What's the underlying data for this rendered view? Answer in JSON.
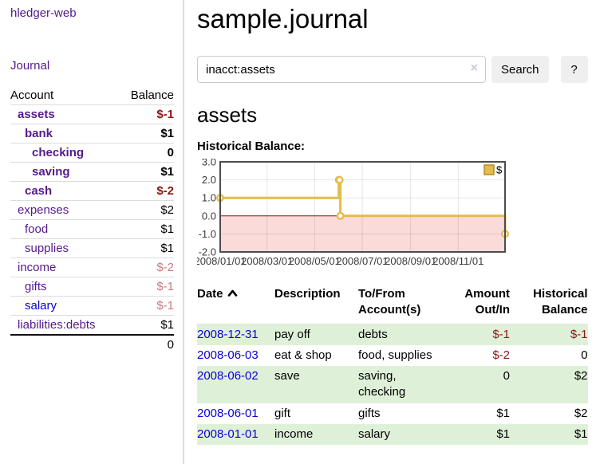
{
  "app": {
    "title": "hledger-web"
  },
  "sidebar": {
    "journal_link": "Journal",
    "accounts_header": {
      "account": "Account",
      "balance": "Balance"
    },
    "accounts": [
      {
        "name": "assets",
        "balance": "$-1",
        "level": 1,
        "bold": true,
        "link": "purple",
        "neg": "strong"
      },
      {
        "name": "bank",
        "balance": "$1",
        "level": 2,
        "bold": true,
        "link": "purple"
      },
      {
        "name": "checking",
        "balance": "0",
        "level": 3,
        "bold": true,
        "link": "purple"
      },
      {
        "name": "saving",
        "balance": "$1",
        "level": 3,
        "bold": true,
        "link": "purple"
      },
      {
        "name": "cash",
        "balance": "$-2",
        "level": 2,
        "bold": true,
        "link": "purple",
        "neg": "strong"
      },
      {
        "name": "expenses",
        "balance": "$2",
        "level": 1,
        "bold": false,
        "link": "purple"
      },
      {
        "name": "food",
        "balance": "$1",
        "level": 2,
        "bold": false,
        "link": "purple"
      },
      {
        "name": "supplies",
        "balance": "$1",
        "level": 2,
        "bold": false,
        "link": "purple"
      },
      {
        "name": "income",
        "balance": "$-2",
        "level": 1,
        "bold": false,
        "link": "purple",
        "neg": "soft"
      },
      {
        "name": "gifts",
        "balance": "$-1",
        "level": 2,
        "bold": false,
        "link": "purple",
        "neg": "soft"
      },
      {
        "name": "salary",
        "balance": "$-1",
        "level": 2,
        "bold": false,
        "link": "blue",
        "neg": "soft"
      },
      {
        "name": "liabilities:debts",
        "balance": "$1",
        "level": 1,
        "bold": false,
        "link": "purple"
      }
    ],
    "total": "0"
  },
  "header": {
    "title": "sample.journal"
  },
  "search": {
    "value": "inacct:assets",
    "clear_icon": "×",
    "button": "Search",
    "help_button": "?"
  },
  "account_page": {
    "title": "assets",
    "chart_label": "Historical Balance:"
  },
  "chart_data": {
    "type": "line",
    "step": true,
    "total_days": 365,
    "ylim": [
      -2,
      3
    ],
    "y_ticks": [
      "3.0",
      "2.0",
      "1.0",
      "0.0",
      "-1.0",
      "-2.0"
    ],
    "x_ticks": [
      {
        "label": "2008/01/01",
        "day": 0
      },
      {
        "label": "2008/03/01",
        "day": 60
      },
      {
        "label": "2008/05/01",
        "day": 121
      },
      {
        "label": "2008/07/01",
        "day": 182
      },
      {
        "label": "2008/09/01",
        "day": 244
      },
      {
        "label": "2008/11/01",
        "day": 305
      }
    ],
    "series": [
      {
        "name": "$",
        "color": "#e3bc4b",
        "points": [
          {
            "date": "2008-01-01",
            "day": 0,
            "value": 1
          },
          {
            "date": "2008-06-01",
            "day": 152,
            "value": 2
          },
          {
            "date": "2008-06-02",
            "day": 153,
            "value": 2
          },
          {
            "date": "2008-06-03",
            "day": 154,
            "value": 0
          },
          {
            "date": "2008-12-31",
            "day": 365,
            "value": -1
          }
        ]
      }
    ],
    "legend_position": "top-right",
    "grid": true,
    "negative_region_color": "#fbdada",
    "zero_line_color": "#9c0f0f"
  },
  "transactions": {
    "columns": [
      "Date",
      "Description",
      "To/From Account(s)",
      "Amount Out/In",
      "Historical Balance"
    ],
    "sort_icon": "chevron-up",
    "rows": [
      {
        "date": "2008-12-31",
        "description": "pay off",
        "accounts": "debts",
        "amount": "$-1",
        "balance": "$-1",
        "amount_neg": true,
        "balance_neg": true,
        "shade": true
      },
      {
        "date": "2008-06-03",
        "description": "eat & shop",
        "accounts": "food, supplies",
        "amount": "$-2",
        "balance": "0",
        "amount_neg": true,
        "balance_neg": false,
        "shade": false
      },
      {
        "date": "2008-06-02",
        "description": "save",
        "accounts": "saving, checking",
        "amount": "0",
        "balance": "$2",
        "amount_neg": false,
        "balance_neg": false,
        "shade": true
      },
      {
        "date": "2008-06-01",
        "description": "gift",
        "accounts": "gifts",
        "amount": "$1",
        "balance": "$2",
        "amount_neg": false,
        "balance_neg": false,
        "shade": false
      },
      {
        "date": "2008-01-01",
        "description": "income",
        "accounts": "salary",
        "amount": "$1",
        "balance": "$1",
        "amount_neg": false,
        "balance_neg": false,
        "shade": true
      }
    ]
  }
}
